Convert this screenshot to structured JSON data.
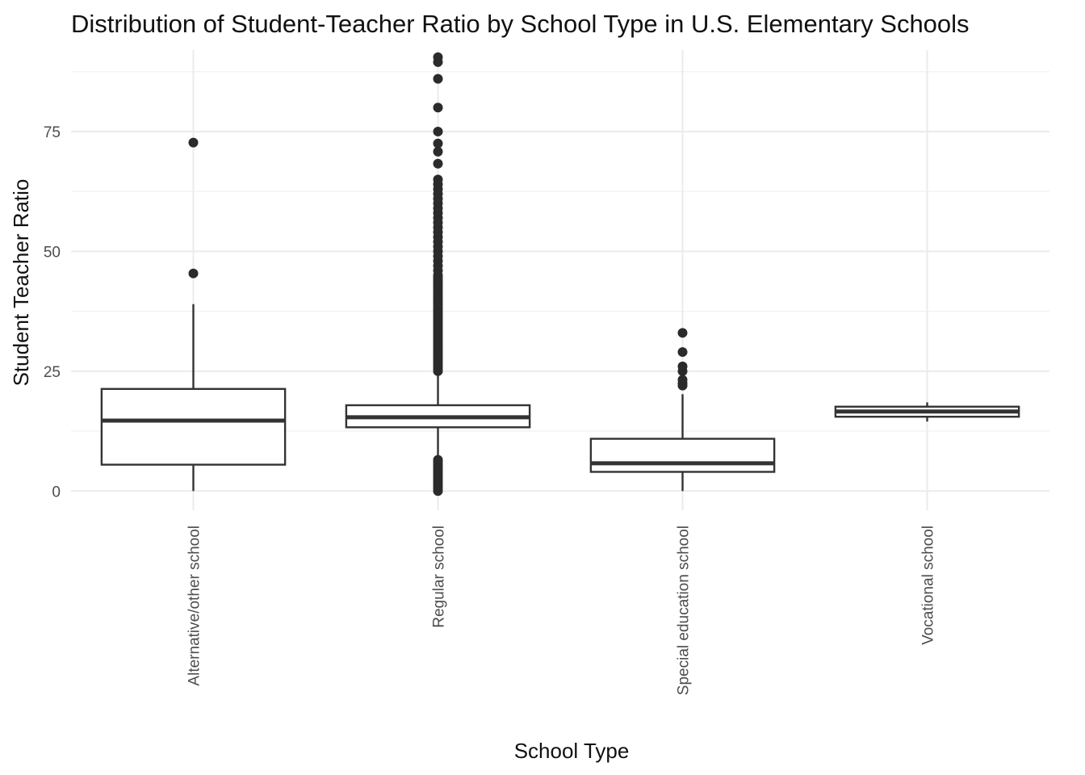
{
  "chart_data": {
    "type": "boxplot",
    "title": "Distribution of Student-Teacher Ratio by School Type in U.S. Elementary Schools",
    "xlabel": "School Type",
    "ylabel": "Student Teacher Ratio",
    "ylim": [
      -4,
      92
    ],
    "y_ticks": [
      0,
      25,
      50,
      75
    ],
    "grid": true,
    "legend": "none",
    "categories": [
      "Alternative/other school",
      "Regular school",
      "Special education school",
      "Vocational school"
    ],
    "boxes": [
      {
        "category": "Alternative/other school",
        "whisker_low": 0,
        "q1": 5.5,
        "median": 14.7,
        "q3": 21.3,
        "whisker_high": 39,
        "outliers": [
          45.4,
          72.7
        ]
      },
      {
        "category": "Regular school",
        "whisker_low": 7,
        "q1": 13.3,
        "median": 15.4,
        "q3": 17.9,
        "whisker_high": 24.8,
        "outliers": [
          0,
          0.5,
          1,
          1.5,
          2,
          2.5,
          3,
          3.5,
          4,
          4.5,
          5,
          5.5,
          6,
          6.5,
          25,
          25.5,
          26,
          26.5,
          27,
          27.5,
          28,
          28.5,
          29,
          29.5,
          30,
          30.5,
          31,
          31.5,
          32,
          32.5,
          33,
          33.5,
          34,
          34.5,
          35,
          35.5,
          36,
          36.5,
          37,
          37.5,
          38,
          38.5,
          39,
          39.5,
          40,
          40.5,
          41,
          41.5,
          42,
          42.5,
          43,
          43.5,
          44,
          44.5,
          45,
          46,
          47,
          48,
          49,
          50,
          51,
          52,
          53,
          54,
          55,
          56,
          57,
          58,
          59,
          60,
          61,
          62,
          63,
          64,
          65,
          68.3,
          70.8,
          72.5,
          75,
          80,
          86,
          89.5,
          90.5
        ]
      },
      {
        "category": "Special education school",
        "whisker_low": 0,
        "q1": 4,
        "median": 5.8,
        "q3": 10.9,
        "whisker_high": 20.2,
        "outliers": [
          22,
          22.5,
          23.2,
          25,
          26,
          29,
          33
        ]
      },
      {
        "category": "Vocational school",
        "whisker_low": 14.5,
        "q1": 15.5,
        "median": 16.6,
        "q3": 17.6,
        "whisker_high": 18.5,
        "outliers": []
      }
    ]
  }
}
